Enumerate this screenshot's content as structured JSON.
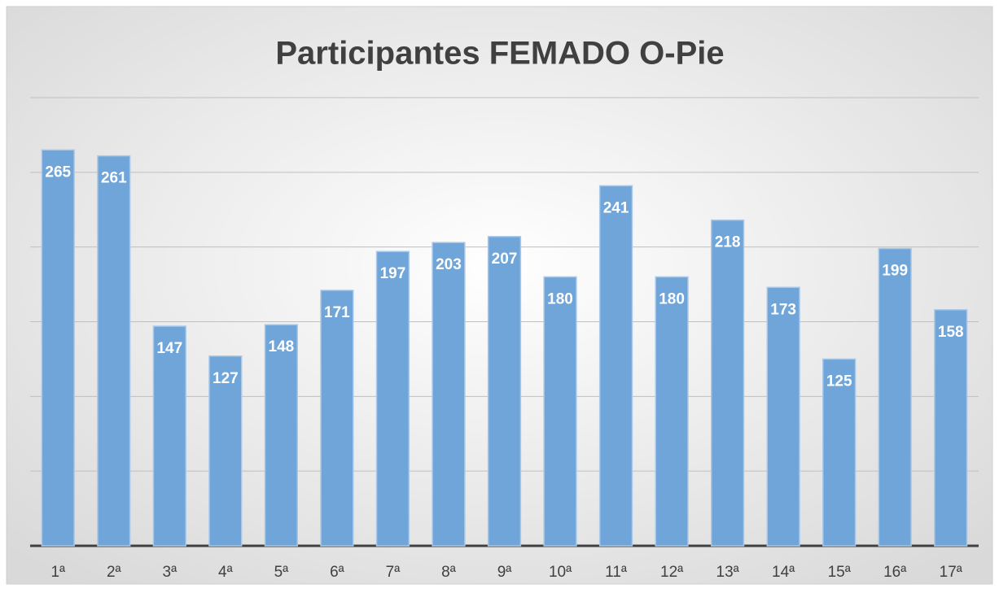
{
  "chart_data": {
    "type": "bar",
    "title": "Participantes FEMADO O-Pie",
    "categories": [
      "1ª",
      "2ª",
      "3ª",
      "4ª",
      "5ª",
      "6ª",
      "7ª",
      "8ª",
      "9ª",
      "10ª",
      "11ª",
      "12ª",
      "13ª",
      "14ª",
      "15ª",
      "16ª",
      "17ª"
    ],
    "values": [
      265,
      261,
      147,
      127,
      148,
      171,
      197,
      203,
      207,
      180,
      241,
      180,
      218,
      173,
      125,
      199,
      158
    ],
    "color": "#6fa5d8",
    "ylim": [
      0,
      300
    ],
    "yticks": [
      0,
      50,
      100,
      150,
      200,
      250,
      300
    ],
    "grid": true
  }
}
